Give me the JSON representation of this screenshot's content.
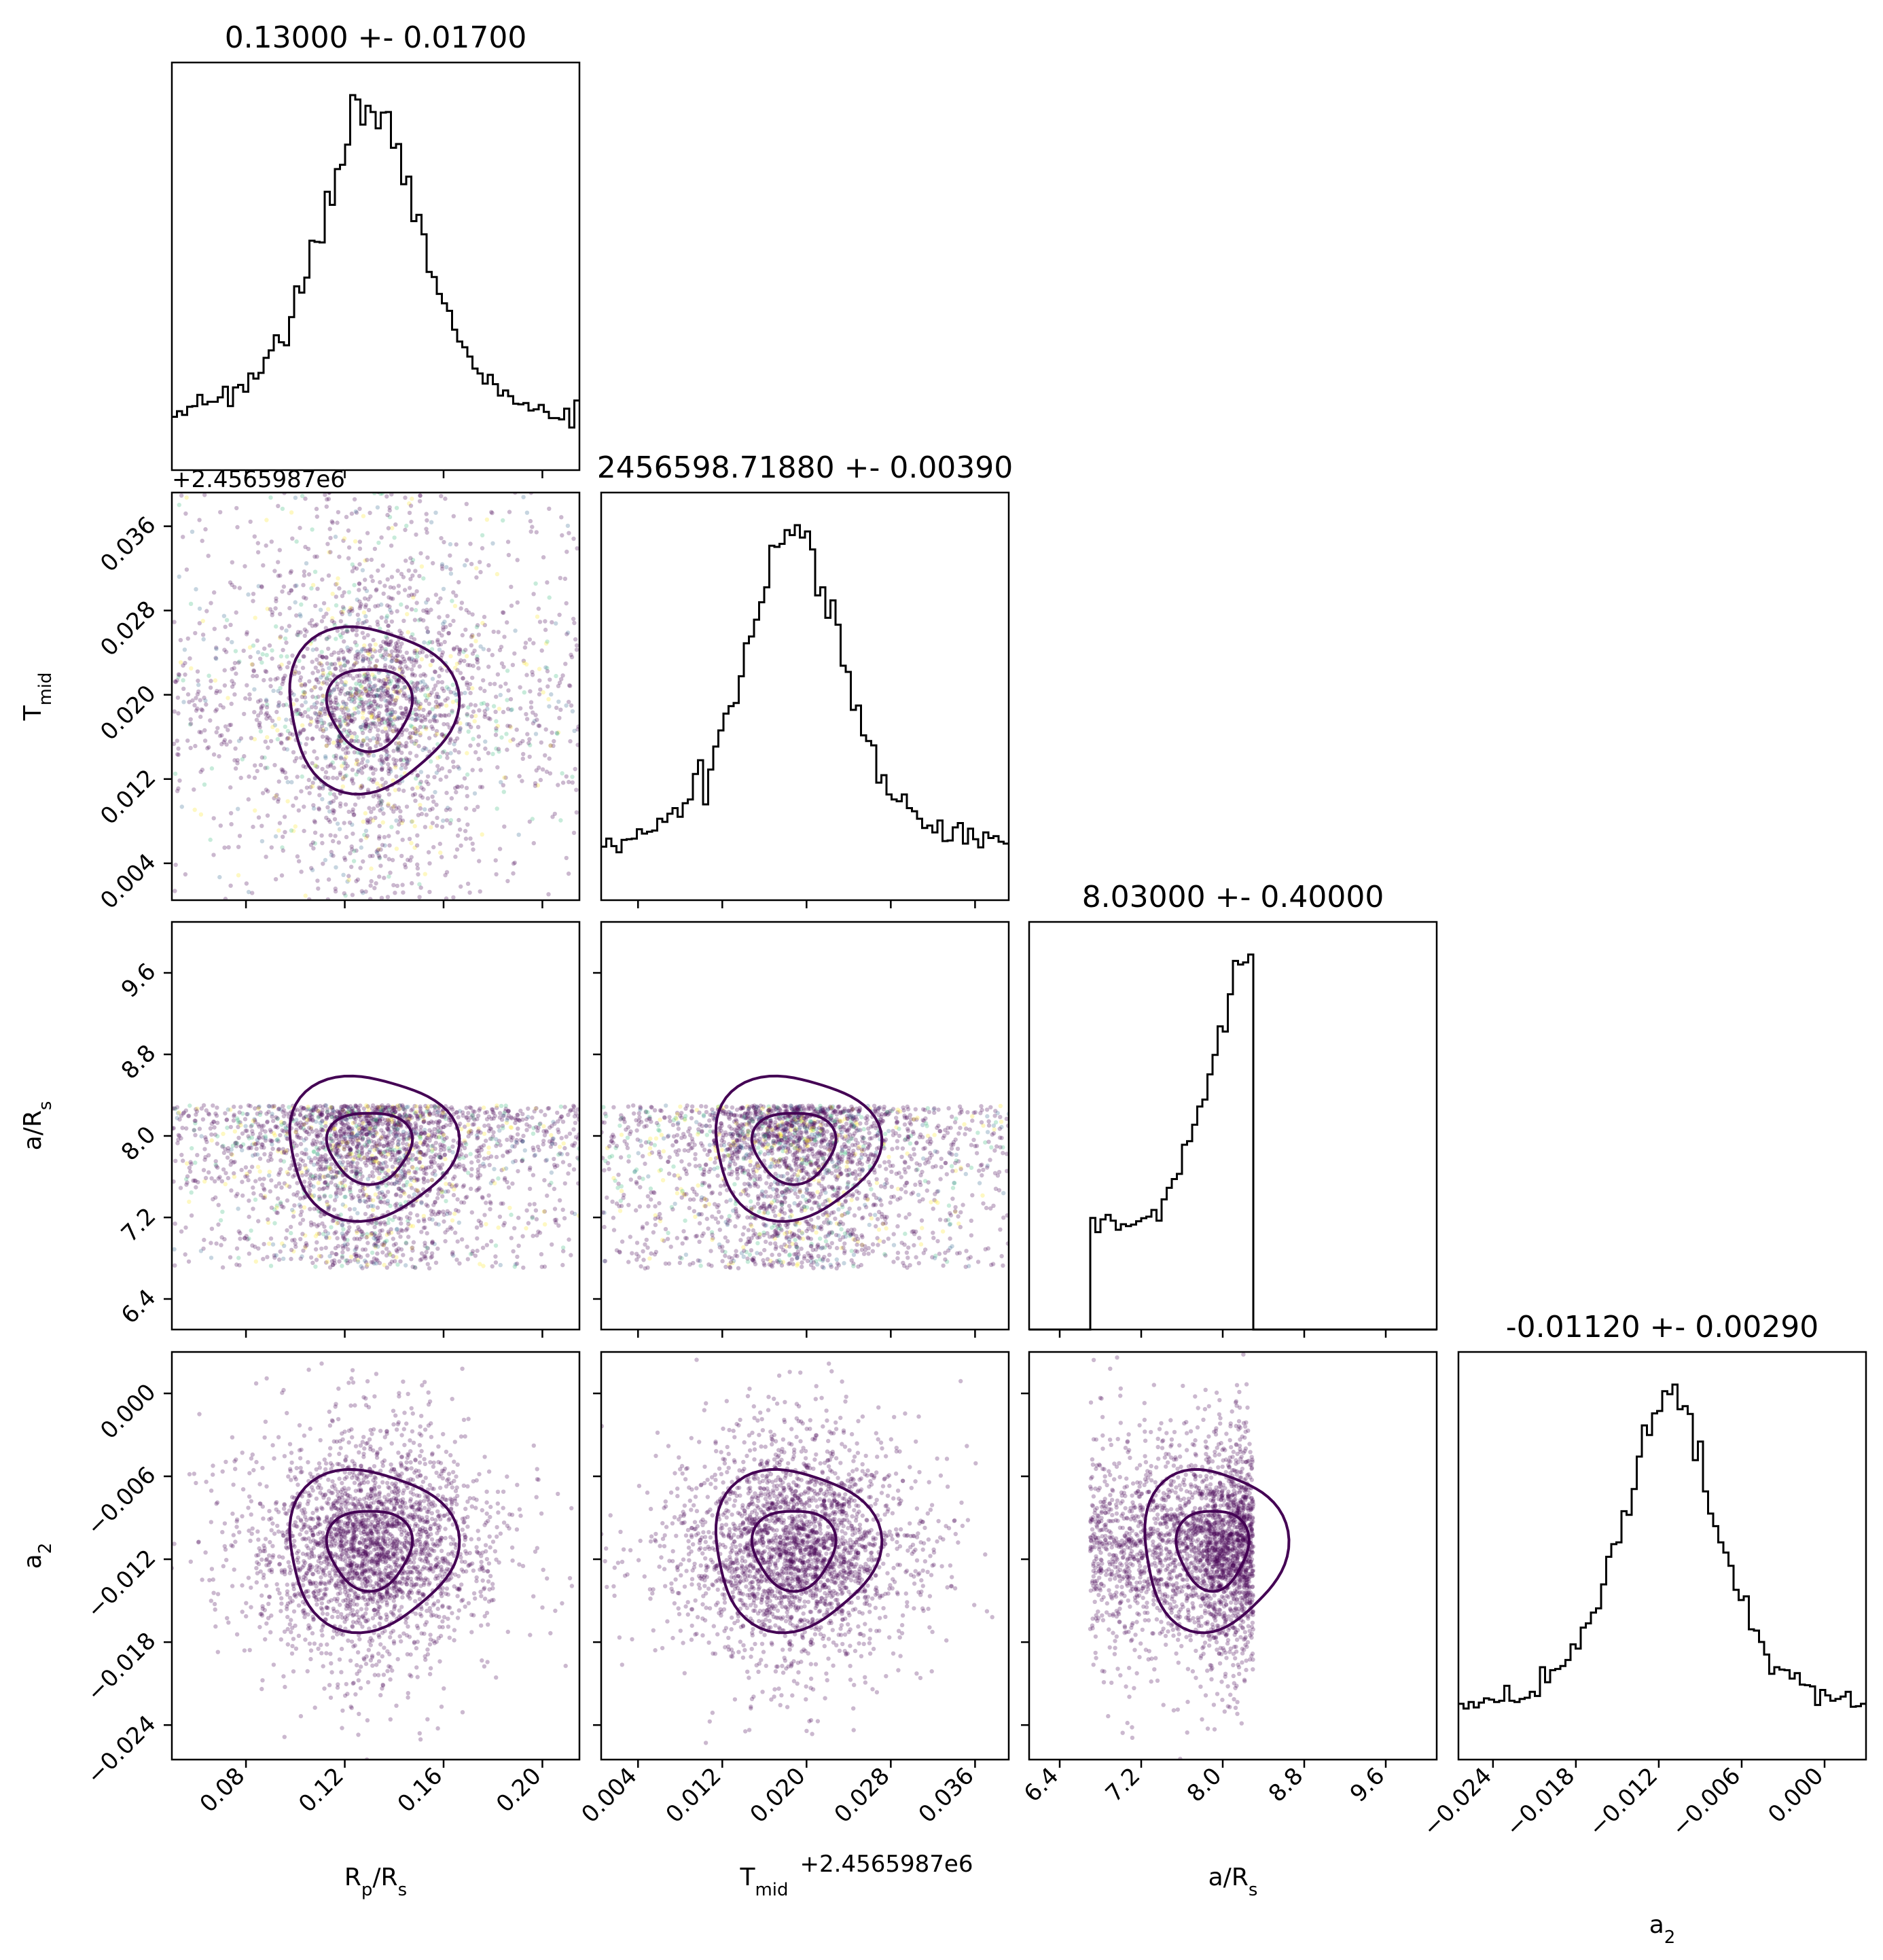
{
  "colors": {
    "frame": "#000000",
    "histogram": "#000000",
    "contour": "#440154",
    "scatter_dominant": "#440154",
    "scatter_minor": [
      "#31688e",
      "#35b779",
      "#fde725"
    ]
  },
  "chart_data": {
    "type": "scatter",
    "description": "corner",
    "parameters": [
      {
        "key": "rp_rs",
        "label": "Rp/Rs",
        "sub": "p",
        "sub2": "s",
        "range": [
          0.05,
          0.215
        ],
        "ticks": [
          0.08,
          0.12,
          0.16,
          0.2
        ],
        "tick_labels": [
          "0.08",
          "0.12",
          "0.16",
          "0.20"
        ]
      },
      {
        "key": "tmid",
        "label": "Tmid",
        "sub": "mid",
        "range": [
          0.0005,
          0.0392
        ],
        "offset": "+2.4565987e6",
        "ticks": [
          0.004,
          0.012,
          0.02,
          0.028,
          0.036
        ],
        "tick_labels": [
          "0.004",
          "0.012",
          "0.020",
          "0.028",
          "0.036"
        ]
      },
      {
        "key": "a_rs",
        "label": "a/Rs",
        "sub": "s",
        "range": [
          6.1,
          10.1
        ],
        "ticks": [
          6.4,
          7.2,
          8.0,
          8.8,
          9.6
        ],
        "tick_labels": [
          "6.4",
          "7.2",
          "8.0",
          "8.8",
          "9.6"
        ]
      },
      {
        "key": "a2",
        "label": "a2",
        "sub": "2",
        "range": [
          -0.0265,
          0.003
        ],
        "ticks": [
          -0.024,
          -0.018,
          -0.012,
          -0.006,
          0.0
        ],
        "tick_labels": [
          "−0.024",
          "−0.018",
          "−0.012",
          "−0.006",
          "0.000"
        ]
      }
    ],
    "diagonal_titles": [
      "0.13000 +- 0.01700",
      "2456598.71880 +- 0.00390",
      "8.03000 +- 0.40000",
      "-0.01120 +- 0.00290"
    ],
    "offset_label": "+2.4565987e6",
    "axis_labels": {
      "rp_rs": {
        "main": "R",
        "sub": "p",
        "mid": "/R",
        "sub2": "s"
      },
      "tmid": {
        "main": "T",
        "sub": "mid"
      },
      "a_rs": {
        "main": "a/R",
        "sub": "s"
      },
      "a2": {
        "main": "a",
        "sub": "2"
      }
    },
    "summary": {
      "rp_rs": {
        "median": 0.13,
        "sigma": 0.017
      },
      "tmid": {
        "median": 0.0188,
        "sigma": 0.0039,
        "offset": 2456598.7
      },
      "a_rs": {
        "median": 8.03,
        "sigma": 0.4,
        "upper_bound": 8.3,
        "lower_bound": 6.7
      },
      "a2": {
        "median": -0.0112,
        "sigma": 0.0029
      }
    },
    "contour_levels": [
      "1-sigma",
      "2-sigma"
    ],
    "grid": false,
    "legend": "none"
  }
}
